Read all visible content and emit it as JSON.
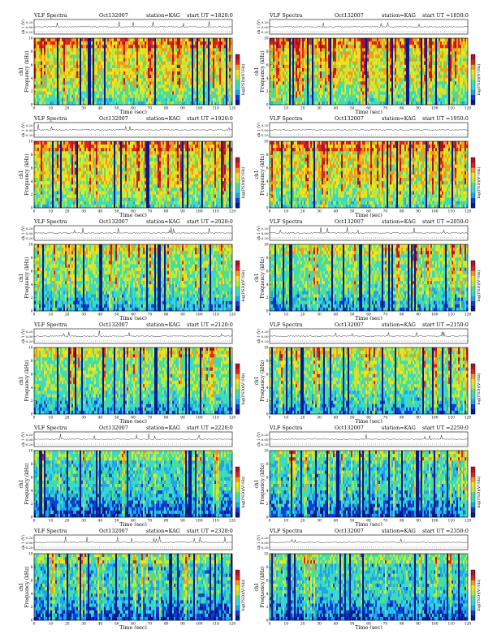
{
  "figure": {
    "rows": 6,
    "cols": 2,
    "colorbar_colors": [
      "#0a1a8c",
      "#0b3fd6",
      "#1fa6e8",
      "#35d8d8",
      "#49e08f",
      "#b9e83b",
      "#f2e31c",
      "#f59a1a",
      "#e0241b",
      "#b0102a"
    ]
  },
  "chart_data": [
    {
      "type": "heatmap",
      "title": "VLF Spectra",
      "date": "Oct132007",
      "station": "station=KAG",
      "start": "start  UT  =1820:0",
      "ylabel_top": "ch 1 (V)",
      "ylabel": "ch1\nFrequency (kHz)",
      "xlabel": "Time  (sec)",
      "colorbar_label": "log(PSD)(V²/Hz)",
      "x_ticks": [
        "0",
        "10",
        "20",
        "30",
        "40",
        "50",
        "60",
        "70",
        "80",
        "90",
        "100",
        "110",
        "120"
      ],
      "y_ticks": [
        "0",
        "2",
        "4",
        "6",
        "8",
        "10"
      ],
      "ylim": [
        0,
        10
      ],
      "xlim": [
        0,
        120
      ],
      "ch1_ticks": [
        "0.20",
        "0.00",
        "-0.20"
      ],
      "intensity": "high"
    },
    {
      "type": "heatmap",
      "title": "VLF Spectra",
      "date": "Oct132007",
      "station": "station=KAG",
      "start": "start  UT  =1850:0",
      "ylabel_top": "ch 1 (V)",
      "ylabel": "ch1\nFrequency (kHz)",
      "xlabel": "Time  (sec)",
      "colorbar_label": "log(PSD)(V²/Hz)",
      "x_ticks": [
        "0",
        "10",
        "20",
        "30",
        "40",
        "50",
        "60",
        "70",
        "80",
        "90",
        "100",
        "110",
        "120"
      ],
      "y_ticks": [
        "0",
        "2",
        "4",
        "6",
        "8",
        "10"
      ],
      "ylim": [
        0,
        10
      ],
      "xlim": [
        0,
        120
      ],
      "ch1_ticks": [
        "0.20",
        "0.00",
        "-0.20"
      ],
      "intensity": "high"
    },
    {
      "type": "heatmap",
      "title": "VLF Spectra",
      "date": "Oct132007",
      "station": "station=KAG",
      "start": "start  UT  =1920:0",
      "ylabel_top": "ch 1 (V)",
      "ylabel": "ch1\nFrequency (kHz)",
      "xlabel": "Time  (sec)",
      "colorbar_label": "log(PSD)(V²/Hz)",
      "x_ticks": [
        "0",
        "10",
        "20",
        "30",
        "40",
        "50",
        "60",
        "70",
        "80",
        "90",
        "100",
        "110",
        "120"
      ],
      "y_ticks": [
        "0",
        "2",
        "4",
        "6",
        "8",
        "10"
      ],
      "ylim": [
        0,
        10
      ],
      "xlim": [
        0,
        120
      ],
      "ch1_ticks": [
        "0.20",
        "0.00",
        "-0.20"
      ],
      "intensity": "high"
    },
    {
      "type": "heatmap",
      "title": "VLF Spectra",
      "date": "Oct132007",
      "station": "station=KAG",
      "start": "start  UT  =1950:0",
      "ylabel_top": "ch 1 (V)",
      "ylabel": "ch1\nFrequency (kHz)",
      "xlabel": "Time  (sec)",
      "colorbar_label": "log(PSD)(V²/Hz)",
      "x_ticks": [
        "0",
        "10",
        "20",
        "30",
        "40",
        "50",
        "60",
        "70",
        "80",
        "90",
        "100",
        "110",
        "120"
      ],
      "y_ticks": [
        "0",
        "2",
        "4",
        "6",
        "8",
        "10"
      ],
      "ylim": [
        0,
        10
      ],
      "xlim": [
        0,
        120
      ],
      "ch1_ticks": [
        "0.20",
        "0.00",
        "-0.20"
      ],
      "intensity": "high"
    },
    {
      "type": "heatmap",
      "title": "VLF Spectra",
      "date": "Oct132007",
      "station": "station=KAG",
      "start": "start  UT  =2020:0",
      "ylabel_top": "ch 1 (V)",
      "ylabel": "ch1\nFrequency (kHz)",
      "xlabel": "Time  (sec)",
      "colorbar_label": "log(PSD)(V²/Hz)",
      "x_ticks": [
        "0",
        "10",
        "20",
        "30",
        "40",
        "50",
        "60",
        "70",
        "80",
        "90",
        "100",
        "110",
        "120"
      ],
      "y_ticks": [
        "0",
        "2",
        "4",
        "6",
        "8",
        "10"
      ],
      "ylim": [
        0,
        10
      ],
      "xlim": [
        0,
        120
      ],
      "ch1_ticks": [
        "0.20",
        "0.00",
        "-0.20"
      ],
      "intensity": "medium"
    },
    {
      "type": "heatmap",
      "title": "VLF Spectra",
      "date": "Oct132007",
      "station": "station=KAG",
      "start": "start  UT  =2050:0",
      "ylabel_top": "ch 1 (V)",
      "ylabel": "ch1\nFrequency (kHz)",
      "xlabel": "Time  (sec)",
      "colorbar_label": "log(PSD)(V²/Hz)",
      "x_ticks": [
        "0",
        "10",
        "20",
        "30",
        "40",
        "50",
        "60",
        "70",
        "80",
        "90",
        "100",
        "110",
        "120"
      ],
      "y_ticks": [
        "0",
        "2",
        "4",
        "6",
        "8",
        "10"
      ],
      "ylim": [
        0,
        10
      ],
      "xlim": [
        0,
        120
      ],
      "ch1_ticks": [
        "0.20",
        "0.00",
        "-0.20"
      ],
      "intensity": "medium"
    },
    {
      "type": "heatmap",
      "title": "VLF Spectra",
      "date": "Oct132007",
      "station": "station=KAG",
      "start": "start  UT  =2120:0",
      "ylabel_top": "ch 1 (V)",
      "ylabel": "ch1\nFrequency (kHz)",
      "xlabel": "Time  (sec)",
      "colorbar_label": "log(PSD)(V²/Hz)",
      "x_ticks": [
        "0",
        "10",
        "20",
        "30",
        "40",
        "50",
        "60",
        "70",
        "80",
        "90",
        "100",
        "110",
        "120"
      ],
      "y_ticks": [
        "0",
        "2",
        "4",
        "6",
        "8",
        "10"
      ],
      "ylim": [
        0,
        10
      ],
      "xlim": [
        0,
        120
      ],
      "ch1_ticks": [
        "0.20",
        "0.00",
        "-0.20"
      ],
      "intensity": "medium"
    },
    {
      "type": "heatmap",
      "title": "VLF Spectra",
      "date": "Oct132007",
      "station": "station=KAG",
      "start": "start  UT  =2150:0",
      "ylabel_top": "ch 1 (V)",
      "ylabel": "ch1\nFrequency (kHz)",
      "xlabel": "Time  (sec)",
      "colorbar_label": "log(PSD)(V²/Hz)",
      "x_ticks": [
        "0",
        "10",
        "20",
        "30",
        "40",
        "50",
        "60",
        "70",
        "80",
        "90",
        "100",
        "110",
        "120"
      ],
      "y_ticks": [
        "0",
        "2",
        "4",
        "6",
        "8",
        "10"
      ],
      "ylim": [
        0,
        10
      ],
      "xlim": [
        0,
        120
      ],
      "ch1_ticks": [
        "0.20",
        "0.00",
        "-0.20"
      ],
      "intensity": "medium"
    },
    {
      "type": "heatmap",
      "title": "VLF Spectra",
      "date": "Oct132007",
      "station": "station=KAG",
      "start": "start  UT  =2220:0",
      "ylabel_top": "ch 1 (V)",
      "ylabel": "ch1\nFrequency (kHz)",
      "xlabel": "Time  (sec)",
      "colorbar_label": "log(PSD)(V²/Hz)",
      "x_ticks": [
        "0",
        "10",
        "20",
        "30",
        "40",
        "50",
        "60",
        "70",
        "80",
        "90",
        "100",
        "110",
        "120"
      ],
      "y_ticks": [
        "0",
        "2",
        "4",
        "6",
        "8",
        "10"
      ],
      "ylim": [
        0,
        10
      ],
      "xlim": [
        0,
        120
      ],
      "ch1_ticks": [
        "0.20",
        "0.00",
        "-0.20"
      ],
      "intensity": "low"
    },
    {
      "type": "heatmap",
      "title": "VLF Spectra",
      "date": "Oct132007",
      "station": "station=KAG",
      "start": "start  UT  =2250:0",
      "ylabel_top": "ch 1 (V)",
      "ylabel": "ch1\nFrequency (kHz)",
      "xlabel": "Time  (sec)",
      "colorbar_label": "log(PSD)(V²/Hz)",
      "x_ticks": [
        "0",
        "10",
        "20",
        "30",
        "40",
        "50",
        "60",
        "70",
        "80",
        "90",
        "100",
        "110",
        "120"
      ],
      "y_ticks": [
        "0",
        "2",
        "4",
        "6",
        "8",
        "10"
      ],
      "ylim": [
        0,
        10
      ],
      "xlim": [
        0,
        120
      ],
      "ch1_ticks": [
        "0.20",
        "0.00",
        "-0.20"
      ],
      "intensity": "low"
    },
    {
      "type": "heatmap",
      "title": "VLF Spectra",
      "date": "Oct132007",
      "station": "station=KAG",
      "start": "start  UT  =2320:0",
      "ylabel_top": "ch 1 (V)",
      "ylabel": "ch1\nFrequency (kHz)",
      "xlabel": "Time  (sec)",
      "colorbar_label": "log(PSD)(V²/Hz)",
      "x_ticks": [
        "0",
        "10",
        "20",
        "30",
        "40",
        "50",
        "60",
        "70",
        "80",
        "90",
        "100",
        "110",
        "120"
      ],
      "y_ticks": [
        "0",
        "2",
        "4",
        "6",
        "8",
        "10"
      ],
      "ylim": [
        0,
        10
      ],
      "xlim": [
        0,
        120
      ],
      "ch1_ticks": [
        "0.20",
        "0.00",
        "-0.20"
      ],
      "intensity": "low"
    },
    {
      "type": "heatmap",
      "title": "VLF Spectra",
      "date": "Oct132007",
      "station": "station=KAG",
      "start": "start  UT  =2350:0",
      "ylabel_top": "ch 1 (V)",
      "ylabel": "ch1\nFrequency (kHz)",
      "xlabel": "Time  (sec)",
      "colorbar_label": "log(PSD)(V²/Hz)",
      "x_ticks": [
        "0",
        "10",
        "20",
        "30",
        "40",
        "50",
        "60",
        "70",
        "80",
        "90",
        "100",
        "110",
        "120"
      ],
      "y_ticks": [
        "0",
        "2",
        "4",
        "6",
        "8",
        "10"
      ],
      "ylim": [
        0,
        10
      ],
      "xlim": [
        0,
        120
      ],
      "ch1_ticks": [
        "0.20",
        "0.00",
        "-0.20"
      ],
      "intensity": "low"
    }
  ]
}
